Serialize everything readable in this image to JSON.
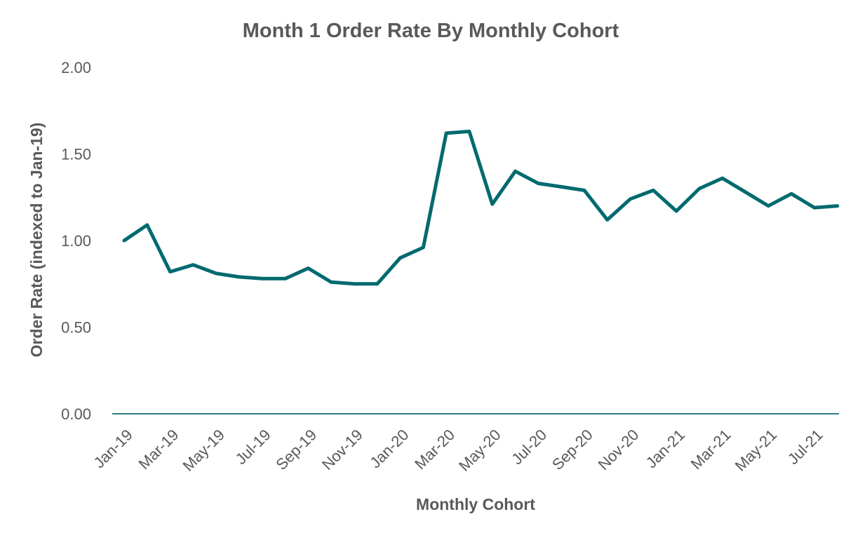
{
  "chart_data": {
    "type": "line",
    "title": "Month 1 Order Rate By Monthly Cohort",
    "xlabel": "Monthly Cohort",
    "ylabel": "Order Rate (indexed to Jan-19)",
    "ylim": [
      0,
      2
    ],
    "yticks": [
      "0.00",
      "0.50",
      "1.00",
      "1.50",
      "2.00"
    ],
    "grid": false,
    "line_color": "#006A6F",
    "axis_color": "#2E7D82",
    "text_color": "#595959",
    "categories": [
      "Jan-19",
      "Feb-19",
      "Mar-19",
      "Apr-19",
      "May-19",
      "Jun-19",
      "Jul-19",
      "Aug-19",
      "Sep-19",
      "Oct-19",
      "Nov-19",
      "Dec-19",
      "Jan-20",
      "Feb-20",
      "Mar-20",
      "Apr-20",
      "May-20",
      "Jun-20",
      "Jul-20",
      "Aug-20",
      "Sep-20",
      "Oct-20",
      "Nov-20",
      "Dec-20",
      "Jan-21",
      "Feb-21",
      "Mar-21",
      "Apr-21",
      "May-21",
      "Jun-21",
      "Jul-21",
      "Aug-21"
    ],
    "tick_labels_shown": [
      "Jan-19",
      "Mar-19",
      "May-19",
      "Jul-19",
      "Sep-19",
      "Nov-19",
      "Jan-20",
      "Mar-20",
      "May-20",
      "Jul-20",
      "Sep-20",
      "Nov-20",
      "Jan-21",
      "Mar-21",
      "May-21",
      "Jul-21"
    ],
    "series": [
      {
        "values": [
          1.0,
          1.09,
          0.82,
          0.86,
          0.81,
          0.79,
          0.78,
          0.78,
          0.84,
          0.76,
          0.75,
          0.75,
          0.9,
          0.96,
          1.62,
          1.63,
          1.21,
          1.4,
          1.33,
          1.31,
          1.29,
          1.12,
          1.24,
          1.29,
          1.17,
          1.3,
          1.36,
          1.28,
          1.2,
          1.27,
          1.19,
          1.2
        ]
      }
    ]
  }
}
